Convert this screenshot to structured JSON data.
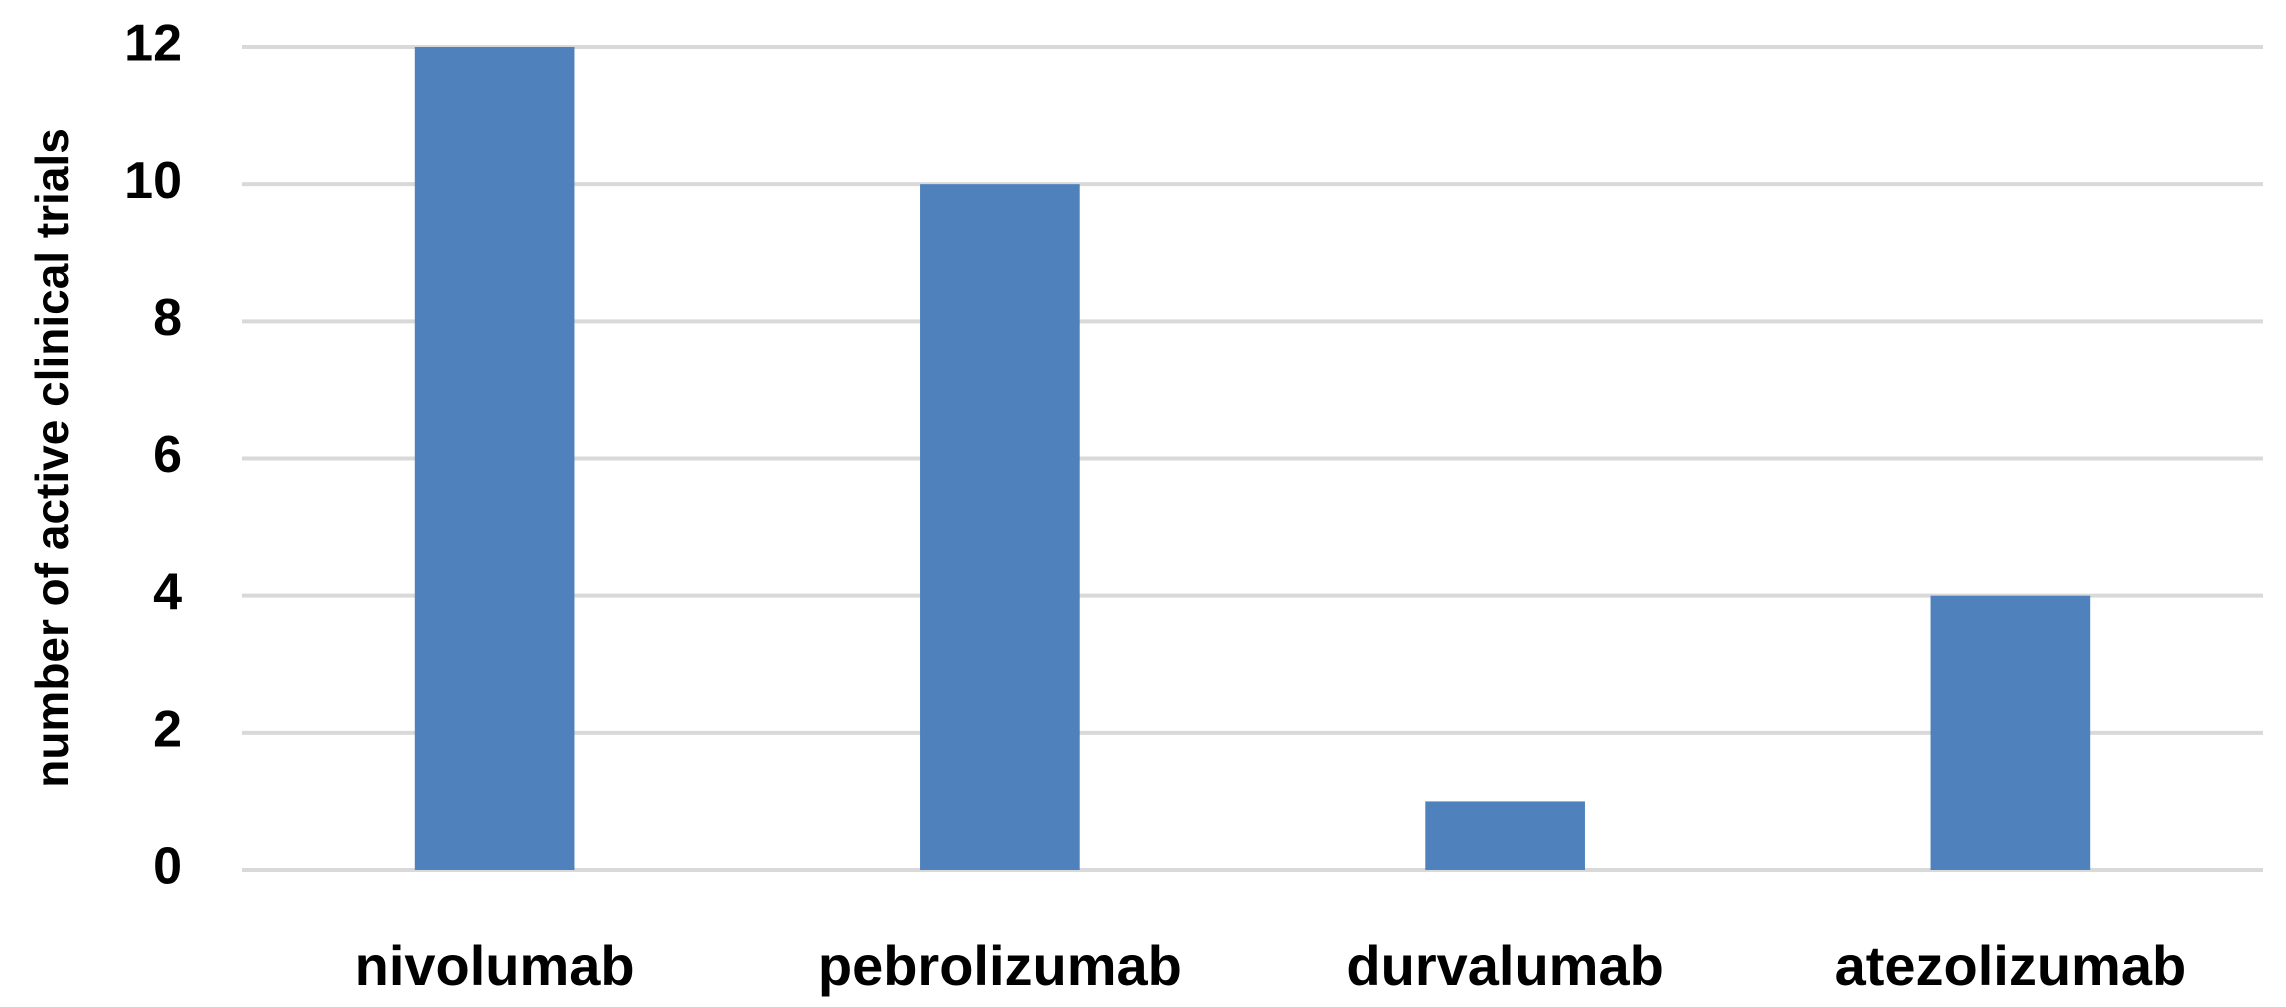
{
  "chart_data": {
    "type": "bar",
    "y_label": "number of active clinical trials",
    "categories": [
      "nivolumab",
      "pebrolizumab",
      "durvalumab",
      "atezolizumab"
    ],
    "values": [
      12,
      10,
      1,
      4
    ],
    "color": "#4f81bd",
    "ylim": [
      0,
      12
    ],
    "yticks": [
      0,
      2,
      4,
      6,
      8,
      10,
      12
    ],
    "grid": true
  }
}
